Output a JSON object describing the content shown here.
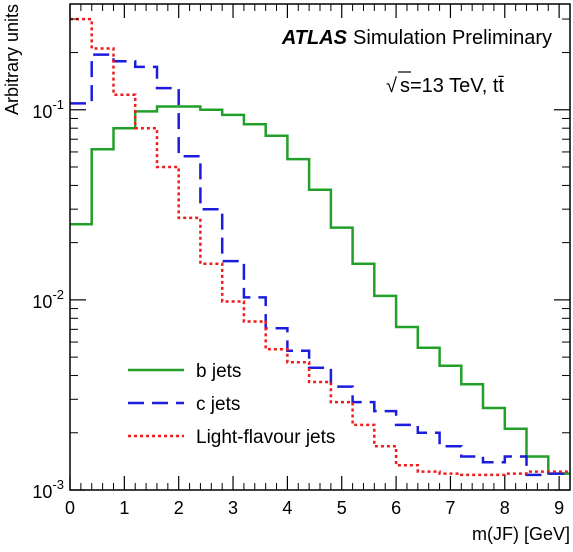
{
  "chart_data": {
    "type": "line",
    "drawstyle": "step-histogram",
    "xlabel": "m(JF) [GeV]",
    "ylabel": "Arbitrary units",
    "xlim": [
      0,
      9.2
    ],
    "ylim": [
      0.001,
      0.36
    ],
    "yscale": "log",
    "grid": false,
    "x_ticks": [
      "0",
      "1",
      "2",
      "3",
      "4",
      "5",
      "6",
      "7",
      "8",
      "9"
    ],
    "y_ticks": [
      {
        "value": 0.001,
        "base": "10",
        "exp": "-3"
      },
      {
        "value": 0.01,
        "base": "10",
        "exp": "-2"
      },
      {
        "value": 0.1,
        "base": "10",
        "exp": "-1"
      }
    ],
    "bin_edges": [
      0,
      0.4,
      0.8,
      1.2,
      1.6,
      2.0,
      2.4,
      2.8,
      3.2,
      3.6,
      4.0,
      4.4,
      4.8,
      5.2,
      5.6,
      6.0,
      6.4,
      6.8,
      7.2,
      7.6,
      8.0,
      8.4,
      8.8,
      9.2
    ],
    "series": [
      {
        "name": "b jets",
        "color": "#22a02a",
        "dash": "solid",
        "values": [
          0.025,
          0.062,
          0.08,
          0.098,
          0.104,
          0.104,
          0.1,
          0.094,
          0.084,
          0.073,
          0.055,
          0.038,
          0.024,
          0.0155,
          0.0105,
          0.0072,
          0.0056,
          0.0045,
          0.0036,
          0.0027,
          0.0021,
          0.0015,
          0.00122
        ]
      },
      {
        "name": "c jets",
        "color": "#1c1cdc",
        "dash": "long-dash",
        "values": [
          0.108,
          0.195,
          0.18,
          0.168,
          0.13,
          0.057,
          0.03,
          0.016,
          0.0103,
          0.0071,
          0.0054,
          0.0044,
          0.0035,
          0.0029,
          0.0026,
          0.0022,
          0.002,
          0.0017,
          0.0015,
          0.0014,
          0.0015,
          0.0012,
          0.00122
        ]
      },
      {
        "name": "Light-flavour jets",
        "color": "#ee1c1c",
        "dash": "dotted",
        "values": [
          0.3,
          0.21,
          0.12,
          0.08,
          0.05,
          0.027,
          0.0155,
          0.0098,
          0.0077,
          0.0055,
          0.0047,
          0.0037,
          0.0029,
          0.0022,
          0.0017,
          0.00135,
          0.00125,
          0.00122,
          0.0012,
          0.0012,
          0.00122,
          0.00125,
          0.00125
        ]
      }
    ],
    "annotations": {
      "atlas": "ATLAS",
      "atlas_suffix": "Simulation Preliminary",
      "sqrt_symbol": "√",
      "energy": "s=13 TeV, tt̄"
    },
    "legend": {
      "placement": "bottom-left"
    }
  }
}
